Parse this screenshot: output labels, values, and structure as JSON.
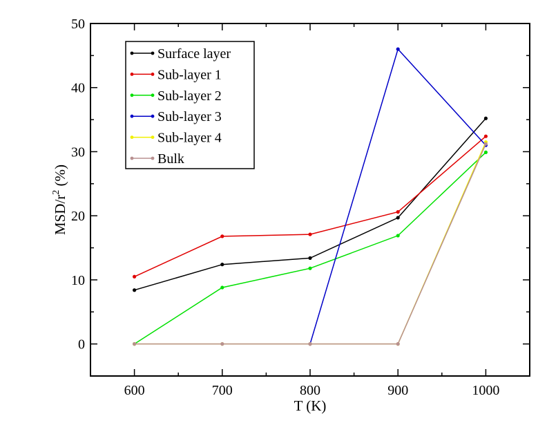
{
  "chart_data": {
    "type": "line",
    "x": [
      600,
      700,
      800,
      900,
      1000
    ],
    "xlabel": "T (K)",
    "ylabel": {
      "main": "MSD/r",
      "sup": "2",
      "unit": " (%)"
    },
    "xlim": [
      550,
      1050
    ],
    "ylim": [
      -5,
      50
    ],
    "xticks": [
      600,
      700,
      800,
      900,
      1000
    ],
    "yticks": [
      0,
      10,
      20,
      30,
      40,
      50
    ],
    "grid": false,
    "legend_position": "top-left",
    "series": [
      {
        "name": "Surface layer",
        "color": "#000000",
        "x": [
          600,
          700,
          800,
          900,
          1000
        ],
        "values": [
          8.4,
          12.4,
          13.4,
          19.7,
          35.2
        ]
      },
      {
        "name": "Sub-layer 1",
        "color": "#e00000",
        "x": [
          600,
          700,
          800,
          900,
          1000
        ],
        "values": [
          10.5,
          16.8,
          17.1,
          20.6,
          32.4
        ]
      },
      {
        "name": "Sub-layer 2",
        "color": "#00e000",
        "x": [
          600,
          700,
          800,
          900,
          1000
        ],
        "values": [
          0.0,
          8.8,
          11.8,
          16.9,
          29.9
        ]
      },
      {
        "name": "Sub-layer 3",
        "color": "#0000c8",
        "x": [
          800,
          900,
          1000
        ],
        "values": [
          0.0,
          46.0,
          31.0
        ]
      },
      {
        "name": "Sub-layer 4",
        "color": "#f0f000",
        "x": [
          600,
          700,
          800,
          900,
          1000
        ],
        "values": [
          0.0,
          0.0,
          0.0,
          0.0,
          31.5
        ]
      },
      {
        "name": "Bulk",
        "color": "#b89090",
        "x": [
          600,
          700,
          800,
          900,
          1000
        ],
        "values": [
          0.0,
          0.0,
          0.0,
          0.0,
          31.2
        ]
      }
    ]
  }
}
